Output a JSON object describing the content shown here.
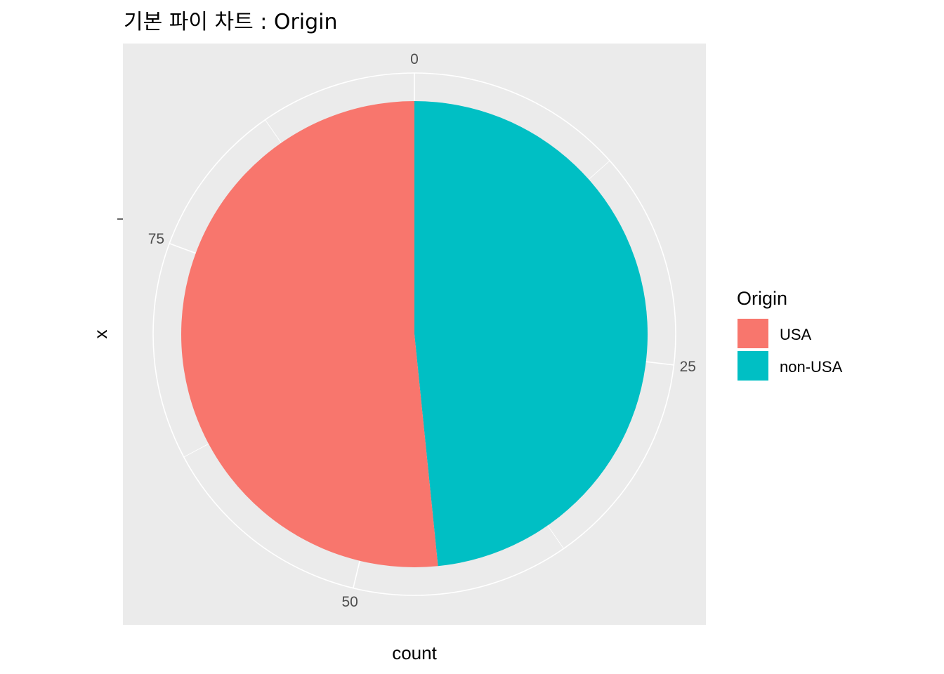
{
  "chart_data": {
    "type": "pie",
    "title": "기본 파이 차트 : Origin",
    "xlabel": "count",
    "ylabel": "x",
    "categories": [
      "USA",
      "non-USA"
    ],
    "values": [
      48,
      45
    ],
    "colors": [
      "#F8766D",
      "#00BFC4"
    ],
    "theta_axis": {
      "range": [
        0,
        93
      ],
      "ticks": [
        0,
        25,
        50,
        75
      ],
      "tick_labels": [
        "0",
        "25",
        "50",
        "75"
      ]
    },
    "legend": {
      "title": "Origin",
      "placement": "right",
      "entries": [
        "USA",
        "non-USA"
      ]
    },
    "panel_background": "#EBEBEB",
    "grid_color": "#FFFFFF",
    "grid": true
  }
}
